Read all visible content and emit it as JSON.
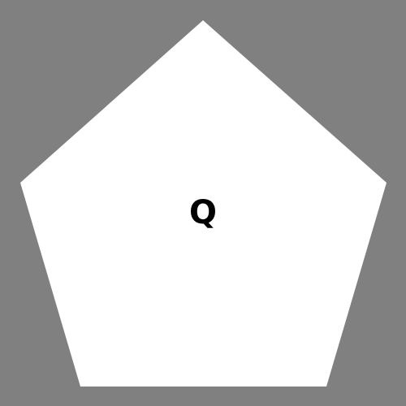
{
  "canvas": {
    "background_color": "#808080"
  },
  "shape": {
    "kind": "pentagon",
    "fill_color": "#ffffff"
  },
  "label": {
    "text": "Q",
    "color": "#000000"
  }
}
